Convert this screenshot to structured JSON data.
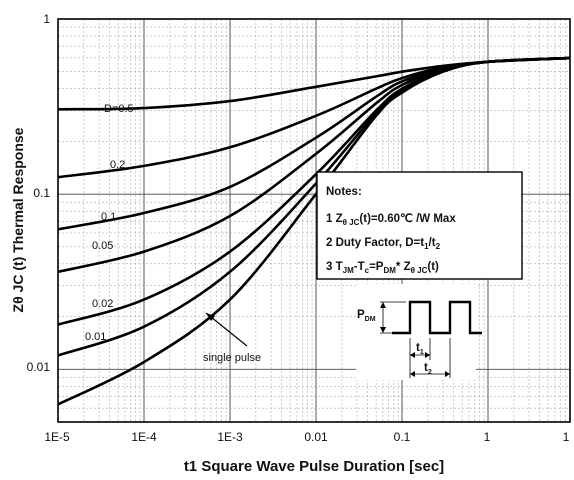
{
  "chart_data": {
    "type": "line",
    "xscale": "log",
    "yscale": "log",
    "xlim": [
      1e-05,
      1
    ],
    "ylim": [
      0.005,
      1
    ],
    "grid": true,
    "xlabel": "t1 Square Wave Pulse Duration [sec]",
    "ylabel": "Zθ JC (t) Thermal Response",
    "xticks": [
      "1E-5",
      "1E-4",
      "1E-3",
      "0.01",
      "0.1",
      "1",
      "1"
    ],
    "yticks": [
      "1",
      "0.1",
      "0.01"
    ],
    "series": [
      {
        "name": "D=0.5",
        "x": [
          1e-05,
          0.0001,
          0.001,
          0.01,
          0.05,
          0.1,
          0.3,
          1,
          10
        ],
        "y": [
          0.305,
          0.31,
          0.34,
          0.41,
          0.47,
          0.5,
          0.54,
          0.57,
          0.6
        ]
      },
      {
        "name": "0.2",
        "x": [
          1e-05,
          0.0001,
          0.001,
          0.01,
          0.05,
          0.1,
          0.3,
          1,
          10
        ],
        "y": [
          0.125,
          0.145,
          0.185,
          0.28,
          0.4,
          0.46,
          0.53,
          0.57,
          0.6
        ]
      },
      {
        "name": "0.1",
        "x": [
          1e-05,
          0.0001,
          0.001,
          0.01,
          0.05,
          0.1,
          0.3,
          1,
          10
        ],
        "y": [
          0.063,
          0.078,
          0.11,
          0.21,
          0.36,
          0.44,
          0.52,
          0.57,
          0.6
        ]
      },
      {
        "name": "0.05",
        "x": [
          1e-05,
          0.0001,
          0.001,
          0.01,
          0.05,
          0.1,
          0.3,
          1,
          10
        ],
        "y": [
          0.036,
          0.047,
          0.075,
          0.17,
          0.33,
          0.42,
          0.52,
          0.57,
          0.6
        ]
      },
      {
        "name": "0.02",
        "x": [
          1e-05,
          0.0001,
          0.001,
          0.01,
          0.05,
          0.1,
          0.3,
          1,
          10
        ],
        "y": [
          0.018,
          0.025,
          0.047,
          0.13,
          0.3,
          0.4,
          0.51,
          0.57,
          0.6
        ]
      },
      {
        "name": "0.01",
        "x": [
          1e-05,
          0.0001,
          0.001,
          0.01,
          0.05,
          0.1,
          0.3,
          1,
          10
        ],
        "y": [
          0.012,
          0.0175,
          0.036,
          0.115,
          0.29,
          0.39,
          0.51,
          0.57,
          0.6
        ]
      },
      {
        "name": "single pulse",
        "x": [
          1e-05,
          0.0001,
          0.001,
          0.01,
          0.05,
          0.1,
          0.3,
          1,
          10
        ],
        "y": [
          0.0063,
          0.011,
          0.025,
          0.1,
          0.28,
          0.38,
          0.5,
          0.57,
          0.6
        ]
      }
    ],
    "curve_labels": [
      "D=0.5",
      "0.2",
      "0.1",
      "0.05",
      "0.02",
      "0.01",
      "single pulse"
    ],
    "notes": {
      "title": "Notes:",
      "line1_prefix": "1 Z",
      "line1_sub": "θ JC",
      "line1_suffix": "(t)=0.60℃ /W Max",
      "line2_prefix": "2 Duty Factor, D=t",
      "line2_sub1": "1",
      "line2_mid": "/t",
      "line2_sub2": "2",
      "line3_prefix": "3 T",
      "line3_sub1": "JM",
      "line3_mid1": "-T",
      "line3_sub2": "c",
      "line3_mid2": "=P",
      "line3_sub3": "DM",
      "line3_mid3": "* Z",
      "line3_sub4": "θ JC",
      "line3_suffix": "(t)"
    },
    "inset": {
      "pdm": "P",
      "pdm_sub": "DM",
      "t1": "t",
      "t1_sub": "1",
      "t2": "t",
      "t2_sub": "2"
    }
  }
}
